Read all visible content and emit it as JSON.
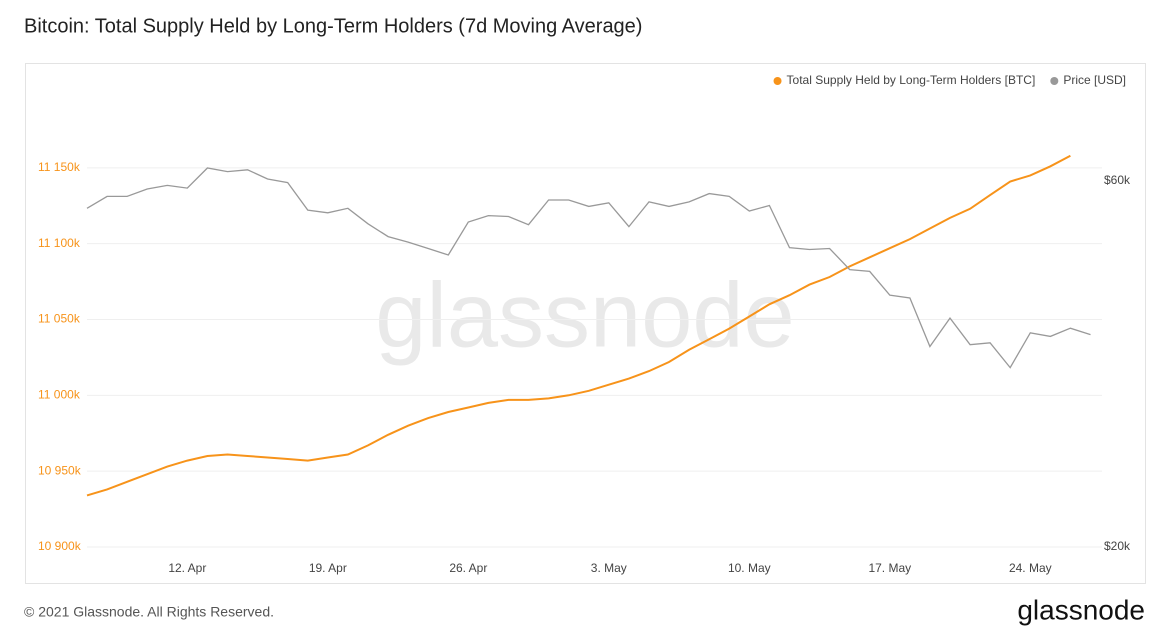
{
  "chart_data": {
    "type": "line",
    "title": "Bitcoin: Total Supply Held by Long-Term Holders (7d Moving Average)",
    "watermark": "glassnode",
    "footer": "© 2021 Glassnode. All Rights Reserved.",
    "logo": "glassnode",
    "categories": [
      null,
      null,
      null,
      null,
      null,
      "12. Apr",
      null,
      null,
      null,
      null,
      null,
      null,
      "19. Apr",
      null,
      null,
      null,
      null,
      null,
      null,
      "26. Apr",
      null,
      null,
      null,
      null,
      null,
      null,
      "3. May",
      null,
      null,
      null,
      null,
      null,
      null,
      "10. May",
      null,
      null,
      null,
      null,
      null,
      null,
      "17. May",
      null,
      null,
      null,
      null,
      null,
      null,
      "24. May",
      null,
      null,
      null
    ],
    "series": [
      {
        "name": "Total Supply Held by Long-Term Holders [BTC]",
        "color": "#f7931a",
        "axis": "y",
        "values": [
          10934000,
          10938000,
          10943000,
          10948000,
          10953000,
          10957000,
          10960000,
          10961000,
          10960000,
          10959000,
          10958000,
          10957000,
          10959000,
          10961000,
          10967000,
          10974000,
          10980000,
          10985000,
          10989000,
          10992000,
          10995000,
          10997000,
          10997000,
          10998000,
          11000000,
          11003000,
          11007000,
          11011000,
          11016000,
          11022000,
          11030000,
          11037000,
          11044000,
          11052000,
          11060000,
          11066000,
          11073000,
          11078000,
          11085000,
          11091000,
          11097000,
          11103000,
          11110000,
          11117000,
          11123000,
          11132000,
          11141000,
          11145000,
          11151000,
          11158000,
          null
        ]
      },
      {
        "name": "Price [USD]",
        "color": "#999999",
        "axis": "y2",
        "values": [
          57000,
          58300,
          58300,
          59100,
          59500,
          59200,
          61400,
          61000,
          61200,
          60200,
          59800,
          56800,
          56500,
          57000,
          55300,
          53900,
          53300,
          52600,
          51900,
          55500,
          56200,
          56100,
          55200,
          57900,
          57900,
          57200,
          57600,
          55000,
          57700,
          57200,
          57700,
          58600,
          58300,
          56700,
          57300,
          52700,
          52500,
          52600,
          50300,
          50100,
          47500,
          47200,
          41900,
          45000,
          42100,
          42300,
          39600,
          43400,
          43000,
          43900,
          43200
        ]
      }
    ],
    "ylim": [
      10900000,
      11200000
    ],
    "yticks": [
      {
        "value": 10900000,
        "label": "10 900k"
      },
      {
        "value": 10950000,
        "label": "10 950k"
      },
      {
        "value": 11000000,
        "label": "11 000k"
      },
      {
        "value": 11050000,
        "label": "11 050k"
      },
      {
        "value": 11100000,
        "label": "11 100k"
      },
      {
        "value": 11150000,
        "label": "11 150k"
      }
    ],
    "y2lim": [
      20000,
      69700
    ],
    "y2ticks": [
      {
        "value": 20000,
        "label": "$20k"
      },
      {
        "value": 60000,
        "label": "$60k"
      }
    ],
    "grid": true,
    "legend": "top-right"
  }
}
